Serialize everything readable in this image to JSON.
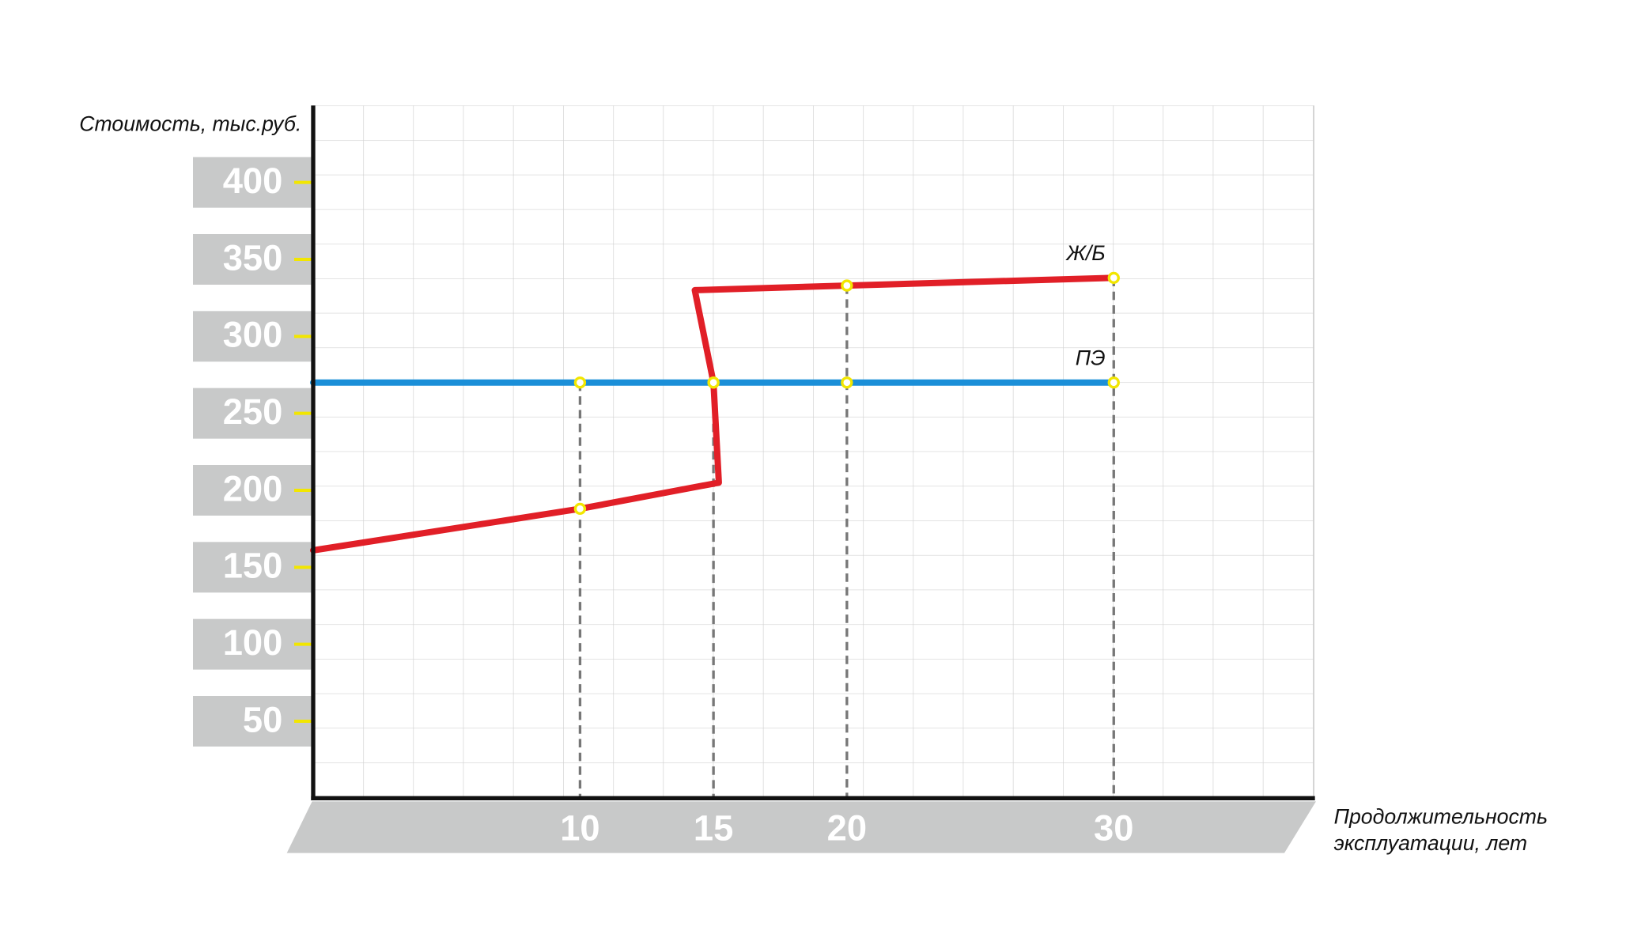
{
  "chart_data": {
    "type": "line",
    "y_label": "Стоимость, тыс.руб.",
    "x_label": [
      "Продолжительность",
      "эксплуатации, лет"
    ],
    "xlim": [
      0,
      37.5
    ],
    "ylim": [
      0,
      450
    ],
    "xticks": [
      10,
      15,
      20,
      30
    ],
    "yticks": [
      50,
      100,
      150,
      200,
      250,
      300,
      350,
      400
    ],
    "grid": true,
    "series": [
      {
        "name": "Ж/Б",
        "color": "#e11f27",
        "x": [
          0,
          10,
          15.2,
          15,
          14.3,
          20,
          30
        ],
        "values": [
          161,
          188,
          205,
          270,
          330,
          333,
          338
        ]
      },
      {
        "name": "ПЭ",
        "color": "#1b8fd8",
        "x": [
          0,
          10,
          15,
          20,
          30
        ],
        "values": [
          270,
          270,
          270,
          270,
          270
        ]
      }
    ]
  }
}
